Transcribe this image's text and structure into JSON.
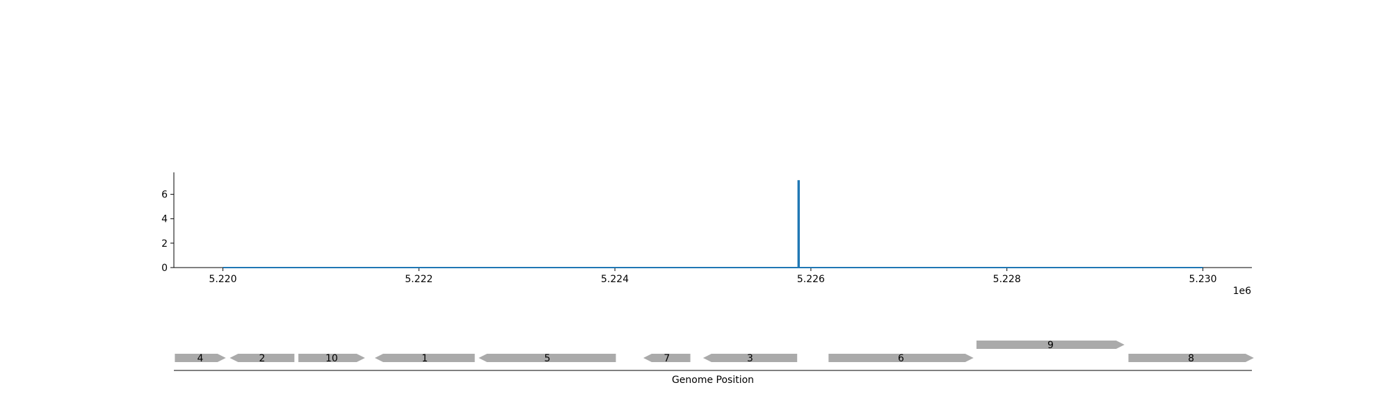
{
  "chart_data": {
    "type": "line",
    "title": "",
    "xlabel": "",
    "ylabel": "",
    "x_offset_label": "1e6",
    "xlim": [
      5219500,
      5230500
    ],
    "ylim": [
      0,
      7.8
    ],
    "x_ticks": [
      5220000,
      5222000,
      5224000,
      5226000,
      5228000,
      5230000
    ],
    "x_tick_labels": [
      "5.220",
      "5.222",
      "5.224",
      "5.226",
      "5.228",
      "5.230"
    ],
    "y_ticks": [
      0,
      2,
      4,
      6
    ],
    "y_tick_labels": [
      "0",
      "2",
      "4",
      "6"
    ],
    "line_color": "#1f77b4",
    "series": [
      {
        "x": [
          5220000,
          5225870,
          5225870,
          5225880,
          5225880,
          5230000
        ],
        "y": [
          0,
          0,
          7.1,
          7.1,
          0,
          0
        ]
      }
    ],
    "gene_track": {
      "xlabel": "Genome Position",
      "gene_color": "#aaaaaa",
      "genes": [
        {
          "label": "4",
          "start": 5219510,
          "end": 5220030,
          "strand": "+",
          "row": 0
        },
        {
          "label": "2",
          "start": 5220070,
          "end": 5220730,
          "strand": "-",
          "row": 0
        },
        {
          "label": "10",
          "start": 5220770,
          "end": 5221450,
          "strand": "+",
          "row": 0
        },
        {
          "label": "1",
          "start": 5221550,
          "end": 5222570,
          "strand": "-",
          "row": 0
        },
        {
          "label": "5",
          "start": 5222610,
          "end": 5224010,
          "strand": "-",
          "row": 0
        },
        {
          "label": "7",
          "start": 5224290,
          "end": 5224770,
          "strand": "-",
          "row": 0
        },
        {
          "label": "3",
          "start": 5224900,
          "end": 5225860,
          "strand": "-",
          "row": 0
        },
        {
          "label": "6",
          "start": 5226180,
          "end": 5227660,
          "strand": "+",
          "row": 0
        },
        {
          "label": "9",
          "start": 5227690,
          "end": 5229200,
          "strand": "+",
          "row": 1
        },
        {
          "label": "8",
          "start": 5229240,
          "end": 5230520,
          "strand": "+",
          "row": 0
        }
      ]
    }
  }
}
